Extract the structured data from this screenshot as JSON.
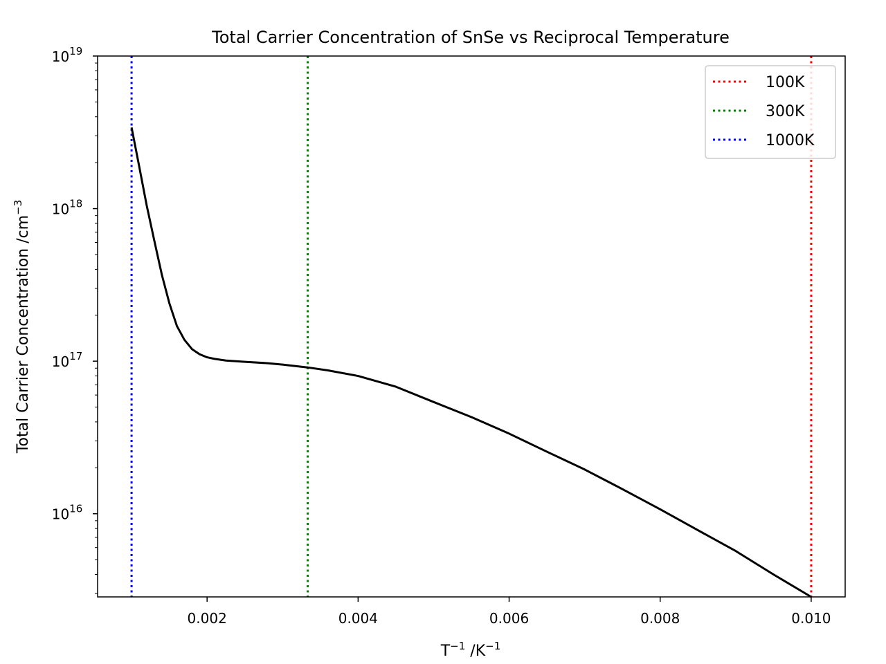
{
  "chart_data": {
    "type": "line",
    "title": "Total Carrier Concentration of SnSe vs Reciprocal Temperature",
    "xlabel": {
      "base": "T",
      "base_sup": "−1",
      "sep": " /K",
      "unit_sup": "−1"
    },
    "ylabel": {
      "text": "Total Carrier Concentration /cm",
      "sup": "−3"
    },
    "x_scale": "linear",
    "y_scale": "log",
    "xlim": [
      0.00055,
      0.01045
    ],
    "ylim": [
      2850000000000000.0,
      1e+19
    ],
    "x_ticks": [
      {
        "value": 0.002,
        "label": "0.002"
      },
      {
        "value": 0.004,
        "label": "0.004"
      },
      {
        "value": 0.006,
        "label": "0.006"
      },
      {
        "value": 0.008,
        "label": "0.008"
      },
      {
        "value": 0.01,
        "label": "0.010"
      }
    ],
    "y_ticks": [
      {
        "value": 1e+16,
        "base": "10",
        "exp": "16"
      },
      {
        "value": 1e+17,
        "base": "10",
        "exp": "17"
      },
      {
        "value": 1e+18,
        "base": "10",
        "exp": "18"
      },
      {
        "value": 1e+19,
        "base": "10",
        "exp": "19"
      }
    ],
    "grid": false,
    "legend_position": "top-right",
    "series": [
      {
        "color": "#000000",
        "style": "solid",
        "x": [
          0.001,
          0.0011,
          0.0012,
          0.0013,
          0.0014,
          0.0015,
          0.0016,
          0.0017,
          0.0018,
          0.0019,
          0.002,
          0.0021,
          0.00225,
          0.0025,
          0.0028,
          0.003,
          0.00333,
          0.0036,
          0.004,
          0.0045,
          0.005,
          0.0055,
          0.006,
          0.0065,
          0.007,
          0.0075,
          0.008,
          0.0085,
          0.009,
          0.0095,
          0.01
        ],
        "y": [
          3.4e+18,
          1.9e+18,
          1.05e+18,
          6.2e+17,
          3.7e+17,
          2.4e+17,
          1.7e+17,
          1.38e+17,
          1.2e+17,
          1.11e+17,
          1.06e+17,
          1.035e+17,
          1.01e+17,
          9.9e+16,
          9.7e+16,
          9.5e+16,
          9.1e+16,
          8.7e+16,
          8e+16,
          6.8e+16,
          5.4e+16,
          4.3e+16,
          3.35e+16,
          2.55e+16,
          1.95e+16,
          1.45e+16,
          1.07e+16,
          7800000000000000.0,
          5700000000000000.0,
          4000000000000000.0,
          2850000000000000.0
        ]
      }
    ],
    "reference_lines": [
      {
        "name": "100K",
        "x": 0.01,
        "color": "#ff0000",
        "style": "dotted"
      },
      {
        "name": "300K",
        "x": 0.003333,
        "color": "#008000",
        "style": "dotted"
      },
      {
        "name": "1000K",
        "x": 0.001,
        "color": "#0000ff",
        "style": "dotted"
      }
    ]
  }
}
